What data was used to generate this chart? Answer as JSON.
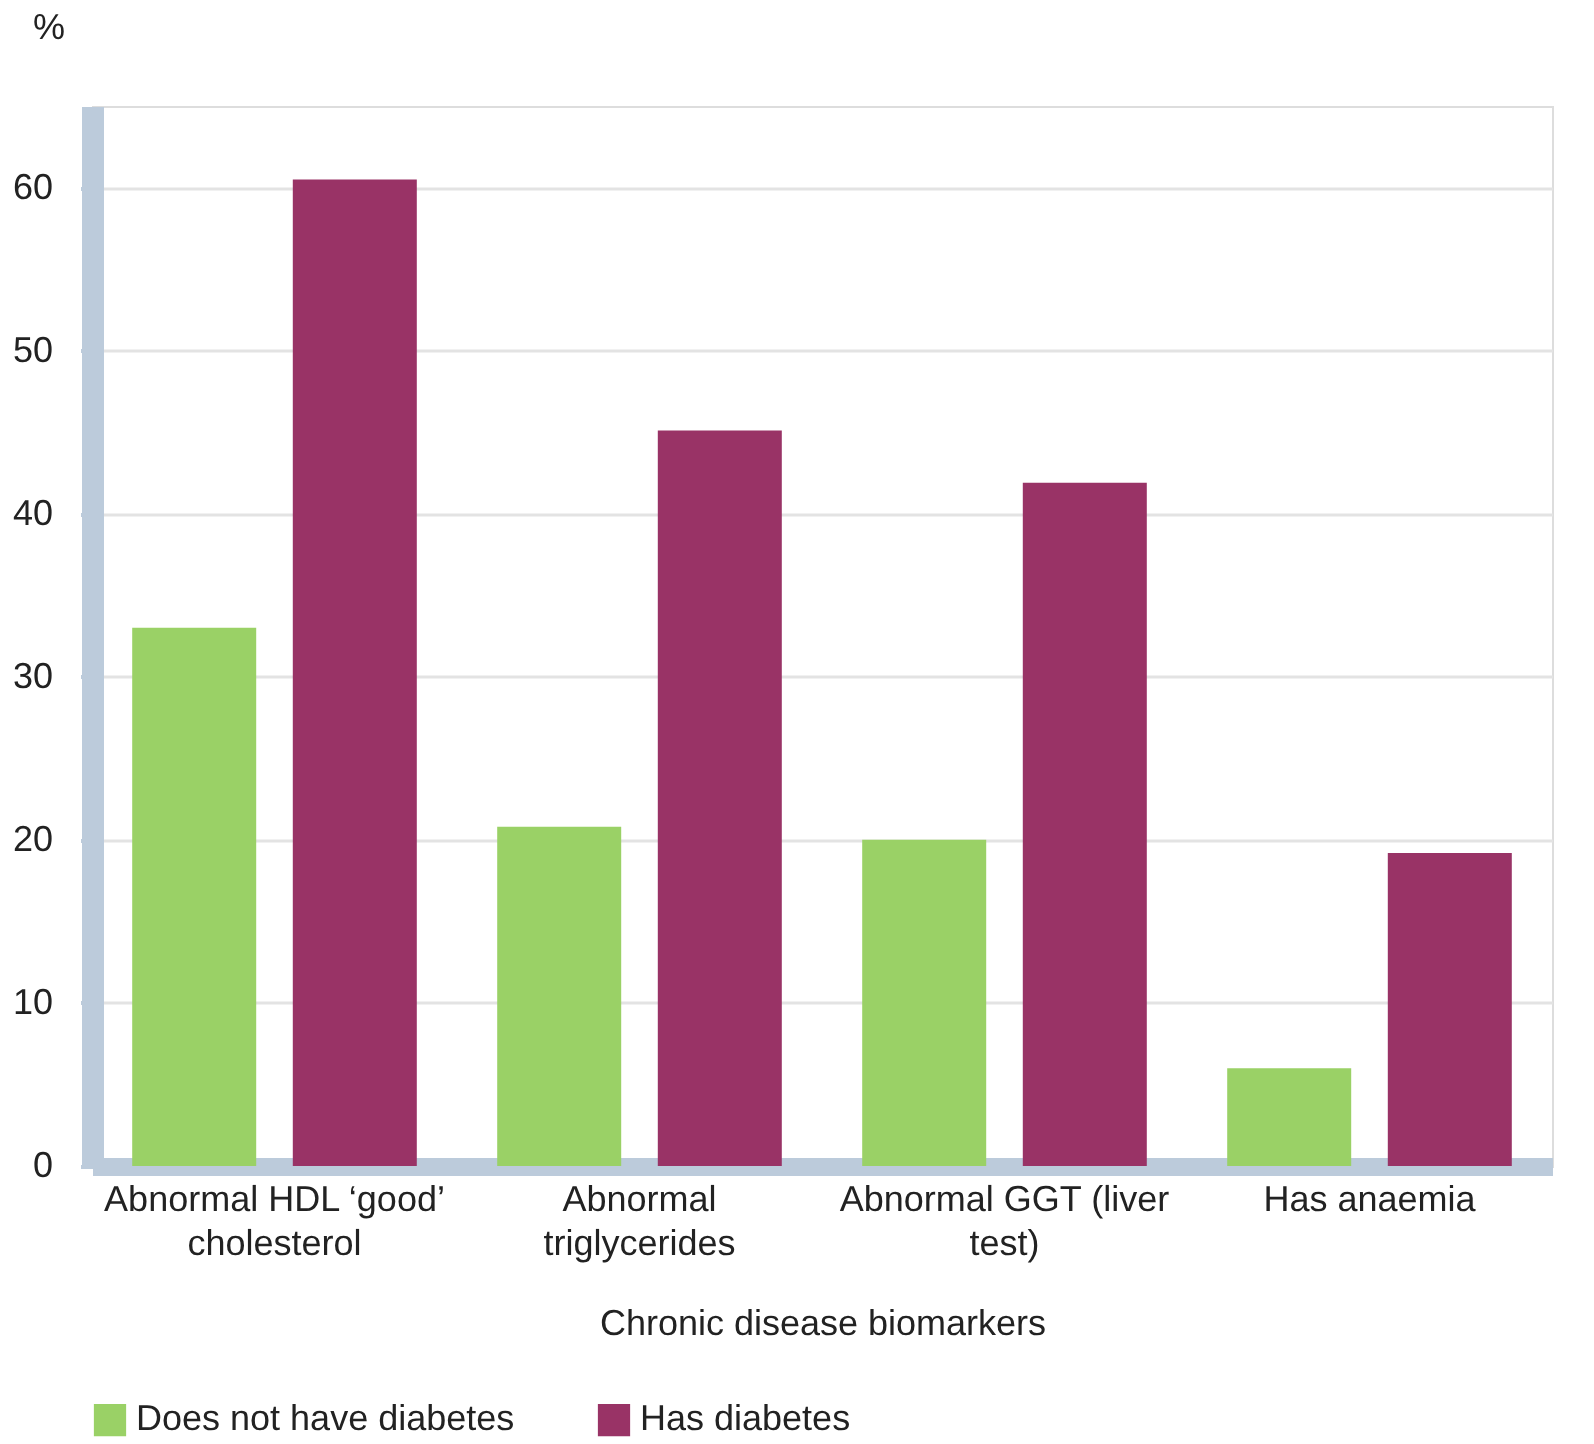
{
  "chart_data": {
    "type": "bar",
    "categories": [
      "Abnormal HDL ‘good’ cholesterol",
      "Abnormal triglycerides",
      "Abnormal GGT (liver test)",
      "Has anaemia"
    ],
    "series": [
      {
        "name": "Does not have diabetes",
        "color": "#9ad166",
        "values": [
          33.0,
          20.8,
          20.0,
          6.0
        ]
      },
      {
        "name": "Has diabetes",
        "color": "#993366",
        "values": [
          60.5,
          45.1,
          41.9,
          19.2
        ]
      }
    ],
    "xlabel": "Chronic disease biomarkers",
    "ylabel": "%",
    "ylim": [
      0,
      65
    ],
    "yticks": [
      0,
      10,
      20,
      30,
      40,
      50,
      60
    ],
    "grid": "y",
    "legend": "bottom"
  }
}
